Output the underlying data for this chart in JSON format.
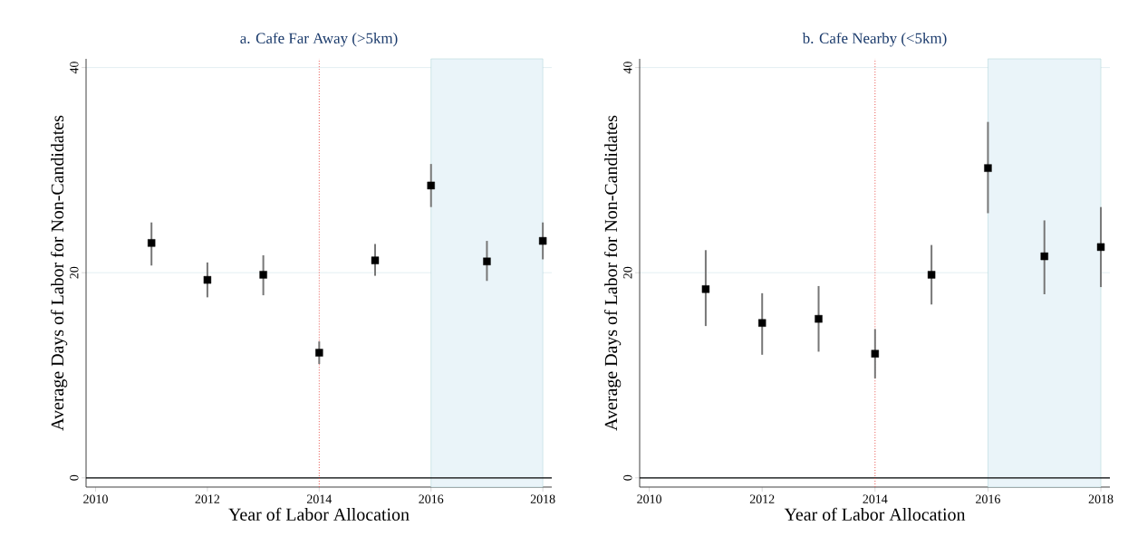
{
  "chart_data": [
    {
      "type": "scatter",
      "title": "a.   Cafe Far Away (>5km)",
      "xlabel": "Year of Labor Allocation",
      "ylabel": "Average Days of Labor for Non-Candidates",
      "x": [
        2011,
        2012,
        2013,
        2014,
        2015,
        2016,
        2017,
        2018
      ],
      "series": [
        {
          "color": "#000000",
          "values": [
            22.9,
            19.3,
            19.8,
            12.2,
            21.2,
            28.5,
            21.1,
            23.1
          ],
          "errors": [
            [
              20.7,
              24.9
            ],
            [
              17.6,
              21.0
            ],
            [
              17.8,
              21.7
            ],
            [
              11.1,
              13.3
            ],
            [
              19.7,
              22.8
            ],
            [
              26.4,
              30.6
            ],
            [
              19.2,
              23.1
            ],
            [
              21.3,
              24.9
            ]
          ]
        }
      ],
      "xlim": [
        2009.83,
        2018.16
      ],
      "ylim": [
        -0.9,
        40.85
      ],
      "xticks": [
        2010,
        2012,
        2014,
        2016,
        2018
      ],
      "yticks": [
        0,
        20,
        40
      ],
      "grid": "y",
      "marker": "square",
      "ref_lines": [
        {
          "axis": "y",
          "value": 0,
          "color": "#000000",
          "line_style": "solid"
        },
        {
          "axis": "x",
          "value": 2014,
          "color": "#e8504a",
          "line_style": "dotted"
        }
      ],
      "bands": [
        {
          "axis": "x",
          "from": 2016,
          "to": 2018,
          "color": "#eaf4f9"
        }
      ]
    },
    {
      "type": "scatter",
      "title": "b.   Cafe Nearby (<5km)",
      "xlabel": "Year of Labor Allocation",
      "ylabel": "Average Days of Labor for Non-Candidates",
      "x": [
        2011,
        2012,
        2013,
        2014,
        2015,
        2016,
        2017,
        2018
      ],
      "series": [
        {
          "color": "#000000",
          "values": [
            18.4,
            15.1,
            15.5,
            12.1,
            19.8,
            30.2,
            21.6,
            22.5
          ],
          "errors": [
            [
              14.8,
              22.2
            ],
            [
              12.0,
              18.0
            ],
            [
              12.3,
              18.7
            ],
            [
              9.7,
              14.5
            ],
            [
              16.9,
              22.7
            ],
            [
              25.8,
              34.7
            ],
            [
              17.9,
              25.1
            ],
            [
              18.6,
              26.4
            ]
          ]
        }
      ],
      "xlim": [
        2009.83,
        2018.16
      ],
      "ylim": [
        -0.9,
        40.85
      ],
      "xticks": [
        2010,
        2012,
        2014,
        2016,
        2018
      ],
      "yticks": [
        0,
        20,
        40
      ],
      "grid": "y",
      "marker": "square",
      "ref_lines": [
        {
          "axis": "y",
          "value": 0,
          "color": "#000000",
          "line_style": "solid"
        },
        {
          "axis": "x",
          "value": 2014,
          "color": "#e8504a",
          "line_style": "dotted"
        }
      ],
      "bands": [
        {
          "axis": "x",
          "from": 2016,
          "to": 2018,
          "color": "#eaf4f9"
        }
      ]
    }
  ]
}
